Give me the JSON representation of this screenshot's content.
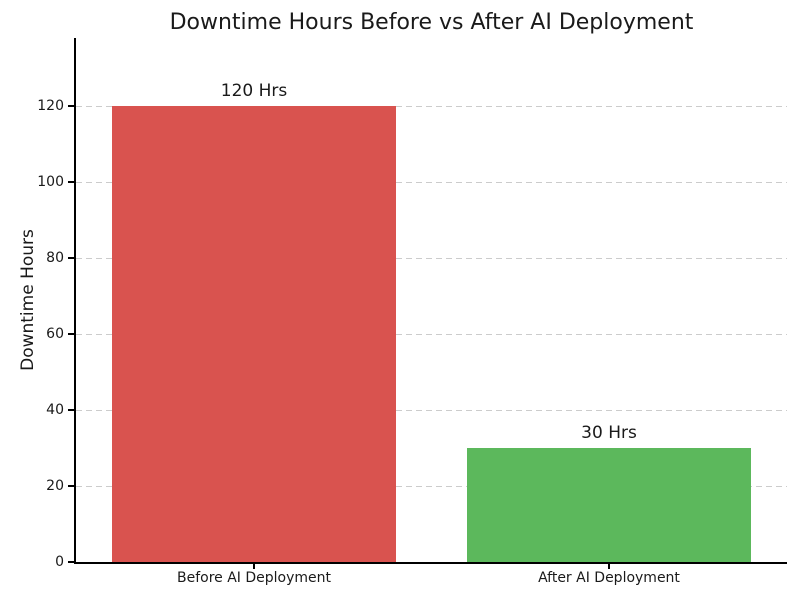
{
  "title": "Downtime Hours Before vs After AI Deployment",
  "chart_data": {
    "type": "bar",
    "title": "Downtime Hours Before vs After AI Deployment",
    "categories": [
      "Before AI Deployment",
      "After AI Deployment"
    ],
    "values": [
      120,
      30
    ],
    "bar_labels": [
      "120 Hrs",
      "30 Hrs"
    ],
    "bar_colors": [
      "#d9534f",
      "#5cb85c"
    ],
    "xlabel": "",
    "ylabel": "Downtime Hours",
    "ylim": [
      0,
      138
    ],
    "yticks": [
      0,
      20,
      40,
      60,
      80,
      100,
      120
    ],
    "grid": "horizontal dashed gridlines at y ticks",
    "legend_position": "none"
  },
  "colors": {
    "before_bar": "#d9534f",
    "after_bar": "#5cb85c",
    "gridline": "#cccccc",
    "axis": "#000000",
    "text": "#1a1a1a"
  }
}
